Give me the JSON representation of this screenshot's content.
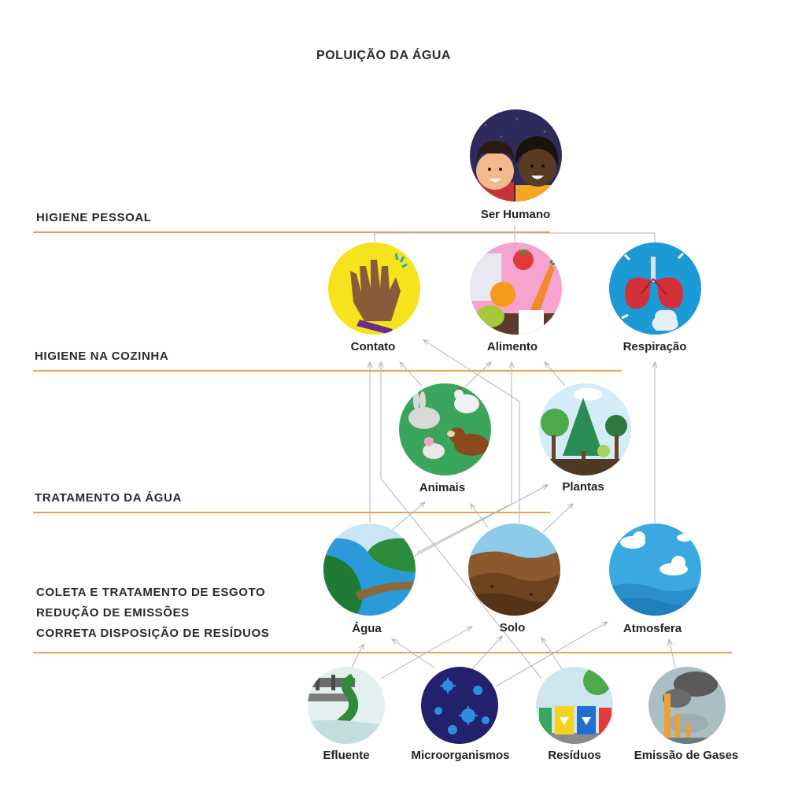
{
  "title": "POLUIÇÃO DA ÁGUA",
  "bands": [
    {
      "label": "HIGIENE PESSOAL"
    },
    {
      "label": "HIGIENE NA COZINHA"
    },
    {
      "label": "TRATAMENTO DA ÁGUA"
    },
    {
      "label": "COLETA E TRATAMENTO DE ESGOTO"
    },
    {
      "label": "REDUÇÃO DE EMISSÕES"
    },
    {
      "label": "CORRETA DISPOSIÇÃO DE RESÍDUOS"
    }
  ],
  "nodes": {
    "ser_humano": "Ser Humano",
    "contato": "Contato",
    "alimento": "Alimento",
    "respiracao": "Respiração",
    "animais": "Animais",
    "plantas": "Plantas",
    "agua": "Água",
    "solo": "Solo",
    "atmosfera": "Atmosfera",
    "efluente": "Efluente",
    "microorganismos": "Microorganismos",
    "residuos": "Resíduos",
    "emissao": "Emissão de Gases"
  },
  "colors": {
    "accent_line": "#f0a04b",
    "connector": "#b3b3b3"
  }
}
